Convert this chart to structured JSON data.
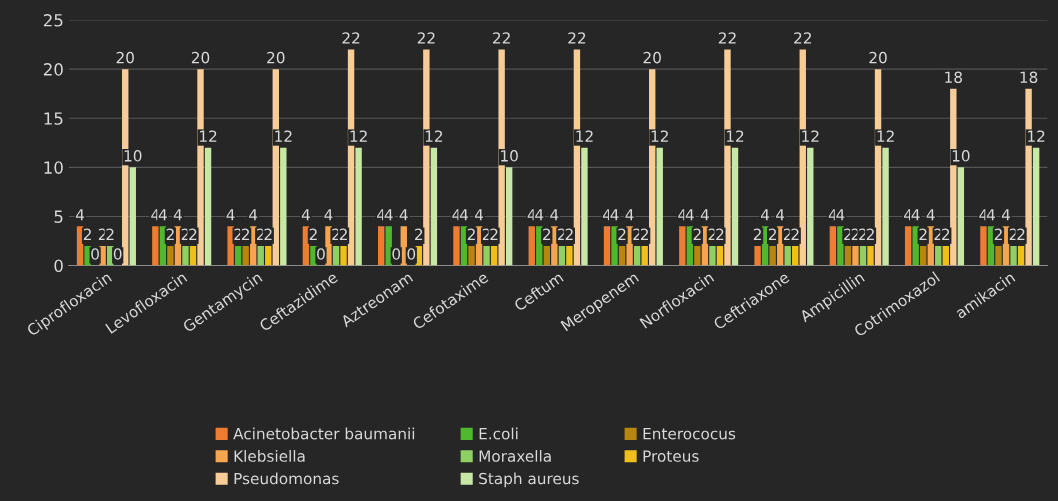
{
  "chart_data": {
    "type": "bar",
    "categories": [
      "Ciprofloxacin",
      "Levofloxacin",
      "Gentamycin",
      "Ceftazidime",
      "Aztreonam",
      "Cefotaxime",
      "Ceftum",
      "Meropenem",
      "Norfloxacin",
      "Ceftriaxone",
      "Ampicillin",
      "Cotrimoxazol",
      "amikacin"
    ],
    "series": [
      {
        "name": "Acinetobacter baumanii",
        "color": "#ed7d31",
        "values": [
          4,
          4,
          4,
          4,
          4,
          4,
          4,
          4,
          4,
          2,
          4,
          4,
          4
        ]
      },
      {
        "name": "E.coli",
        "color": "#4fb82e",
        "values": [
          2,
          4,
          2,
          2,
          4,
          4,
          4,
          4,
          4,
          4,
          4,
          4,
          4
        ]
      },
      {
        "name": "Enterococus",
        "color": "#b8860f",
        "values": [
          0,
          2,
          2,
          0,
          0,
          2,
          2,
          2,
          2,
          2,
          2,
          2,
          2
        ]
      },
      {
        "name": "Klebsiella",
        "color": "#f5a54f",
        "values": [
          2,
          4,
          4,
          4,
          4,
          4,
          4,
          4,
          4,
          4,
          2,
          4,
          4
        ]
      },
      {
        "name": "Moraxella",
        "color": "#8fd064",
        "values": [
          2,
          2,
          2,
          2,
          0,
          2,
          2,
          2,
          2,
          2,
          2,
          2,
          2
        ]
      },
      {
        "name": "Proteus",
        "color": "#f0bf1a",
        "values": [
          0,
          2,
          2,
          2,
          2,
          2,
          2,
          2,
          2,
          2,
          2,
          2,
          2
        ]
      },
      {
        "name": "Pseudomonas",
        "color": "#f8cc96",
        "values": [
          20,
          20,
          20,
          22,
          22,
          22,
          22,
          20,
          22,
          22,
          20,
          18,
          18
        ]
      },
      {
        "name": "Staph aureus",
        "color": "#c6e8a4",
        "values": [
          10,
          12,
          12,
          12,
          12,
          10,
          12,
          12,
          12,
          12,
          12,
          10,
          12
        ]
      }
    ],
    "ylim": [
      0,
      25
    ],
    "yticks": [
      0,
      5,
      10,
      15,
      20,
      25
    ],
    "grid": "y",
    "legend": "bottom",
    "data_labels": true
  }
}
